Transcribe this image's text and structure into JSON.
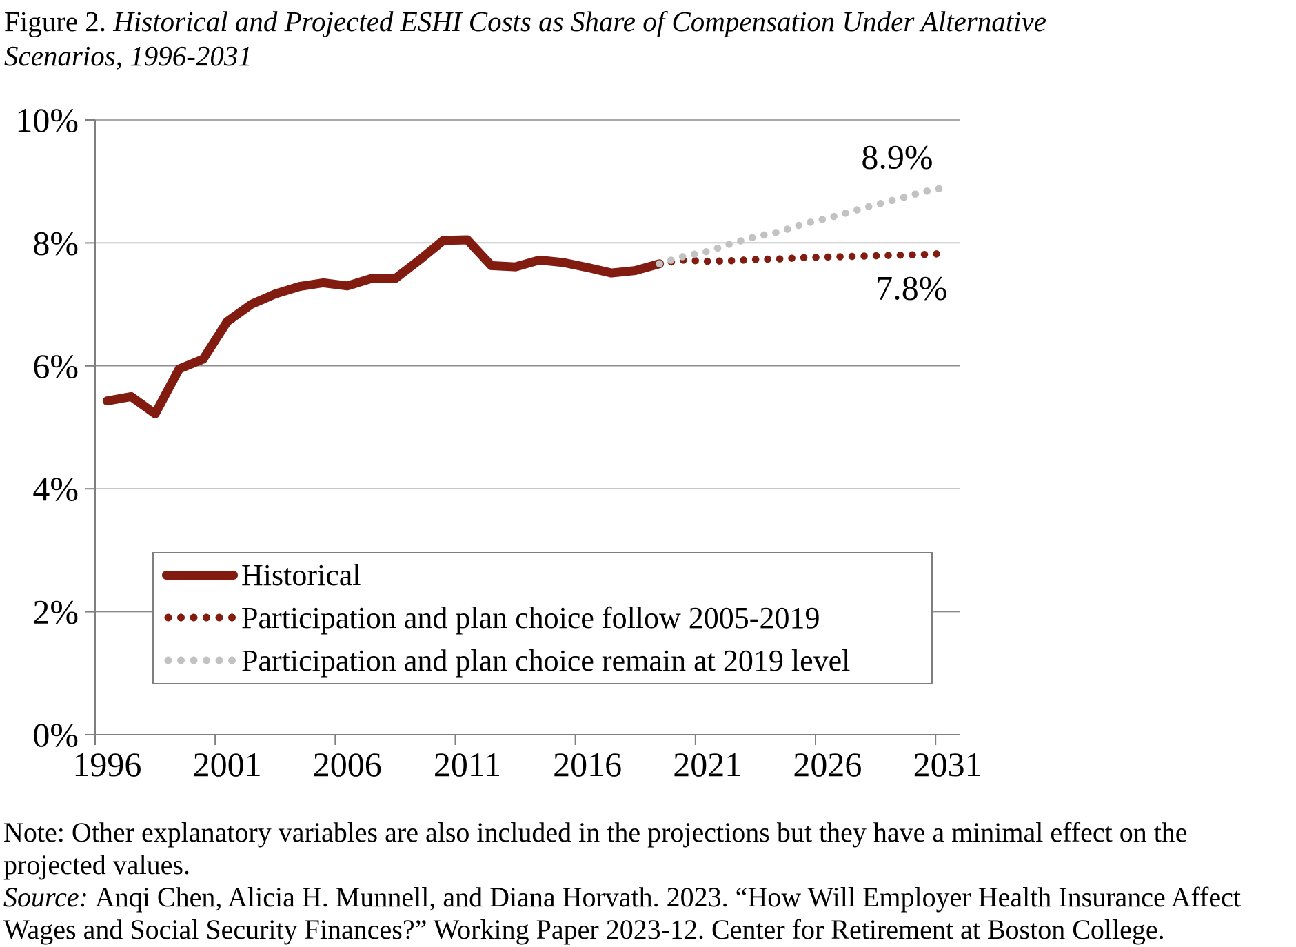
{
  "figure": {
    "title_prefix": "Figure 2. ",
    "title_line1_italic": "Historical and Projected ESHI Costs as Share of Compensation Under Alternative",
    "title_line2_italic": "Scenarios, 1996-2031"
  },
  "colors": {
    "dark_red": "#821c10",
    "light_gray": "#c2c2c2",
    "gridline": "#8c8c8c",
    "axis": "#7f7f7f",
    "text": "#000000",
    "background": "#ffffff"
  },
  "legend": {
    "items": [
      {
        "label": "Historical",
        "style": "solid",
        "color": "#821c10"
      },
      {
        "label": "Participation and plan choice follow 2005-2019",
        "style": "dotted",
        "color": "#821c10"
      },
      {
        "label": "Participation and plan choice remain at 2019 level",
        "style": "dotted",
        "color": "#c2c2c2"
      }
    ]
  },
  "chart_data": {
    "type": "line",
    "title": "Historical and Projected ESHI Costs as Share of Compensation Under Alternative Scenarios, 1996-2031",
    "xlabel": "",
    "ylabel": "",
    "x_range": [
      1996,
      2031
    ],
    "ylim": [
      0,
      10
    ],
    "grid": true,
    "legend_position": "lower-center-box",
    "yticks": [
      {
        "value": 0,
        "label": "0%"
      },
      {
        "value": 2,
        "label": "2%"
      },
      {
        "value": 4,
        "label": "4%"
      },
      {
        "value": 6,
        "label": "6%"
      },
      {
        "value": 8,
        "label": "8%"
      },
      {
        "value": 10,
        "label": "10%"
      }
    ],
    "xticks": [
      {
        "year": 1996,
        "label": "1996"
      },
      {
        "year": 2001,
        "label": "2001"
      },
      {
        "year": 2006,
        "label": "2006"
      },
      {
        "year": 2011,
        "label": "2011"
      },
      {
        "year": 2016,
        "label": "2016"
      },
      {
        "year": 2021,
        "label": "2021"
      },
      {
        "year": 2026,
        "label": "2026"
      },
      {
        "year": 2031,
        "label": "2031"
      }
    ],
    "series": [
      {
        "name": "Historical",
        "style": "solid",
        "color": "#821c10",
        "width": 13,
        "x": [
          1996,
          1997,
          1998,
          1999,
          2000,
          2001,
          2002,
          2003,
          2004,
          2005,
          2006,
          2007,
          2008,
          2009,
          2010,
          2011,
          2012,
          2013,
          2014,
          2015,
          2016,
          2017,
          2018,
          2019
        ],
        "values": [
          5.43,
          5.5,
          5.22,
          5.95,
          6.11,
          6.72,
          7.0,
          7.17,
          7.29,
          7.35,
          7.3,
          7.42,
          7.42,
          7.72,
          8.04,
          8.05,
          7.63,
          7.61,
          7.72,
          7.68,
          7.6,
          7.51,
          7.55,
          7.66
        ]
      },
      {
        "name": "Participation and plan choice follow 2005-2019",
        "style": "dotted",
        "color": "#821c10",
        "width": 10.5,
        "x": [
          2019,
          2020,
          2021,
          2022,
          2023,
          2024,
          2025,
          2026,
          2027,
          2028,
          2029,
          2030,
          2031
        ],
        "values": [
          7.66,
          7.72,
          7.7,
          7.71,
          7.73,
          7.74,
          7.76,
          7.77,
          7.78,
          7.79,
          7.8,
          7.81,
          7.83
        ]
      },
      {
        "name": "Participation and plan choice remain at 2019 level",
        "style": "dotted",
        "color": "#c2c2c2",
        "width": 10.5,
        "x": [
          2019,
          2020,
          2021,
          2022,
          2023,
          2024,
          2025,
          2026,
          2027,
          2028,
          2029,
          2030,
          2031
        ],
        "values": [
          7.66,
          7.78,
          7.86,
          7.99,
          8.1,
          8.18,
          8.31,
          8.4,
          8.51,
          8.62,
          8.72,
          8.83,
          8.91
        ]
      }
    ],
    "annotations": [
      {
        "text": "8.9%",
        "year": 2028.9,
        "value": 9.4
      },
      {
        "text": "7.8%",
        "year": 2029.5,
        "value": 7.27
      }
    ]
  },
  "notes": {
    "line1": "Note: Other explanatory variables are also included in the projections but they have a minimal effect on the",
    "line2": "projected values.",
    "source_prefix": "Source: ",
    "source_rest": "Anqi Chen, Alicia H. Munnell, and Diana Horvath. 2023. “How Will Employer Health Insurance Affect",
    "source_line2": "Wages and Social Security Finances?” Working Paper 2023-12. Center for Retirement at Boston College."
  }
}
